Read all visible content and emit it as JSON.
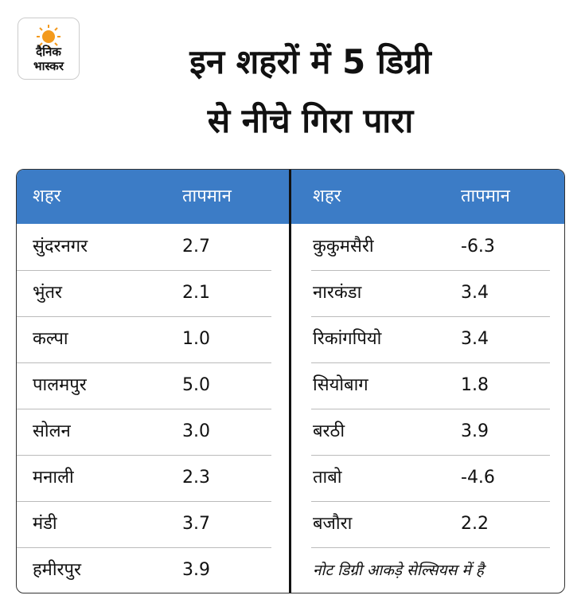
{
  "logo": {
    "line1": "दैनिक",
    "line2": "भास्कर"
  },
  "title": {
    "lines": [
      "इन शहरों में 5 डिग्री",
      "से नीचे गिरा पारा"
    ]
  },
  "tables": [
    {
      "header": [
        "शहर",
        "तापमान"
      ],
      "rows": [
        [
          "सुंदरनगर",
          "2.7"
        ],
        [
          "भुंतर",
          "2.1"
        ],
        [
          "कल्पा",
          "1.0"
        ],
        [
          "पालमपुर",
          "5.0"
        ],
        [
          "सोलन",
          "3.0"
        ],
        [
          "मनाली",
          "2.3"
        ],
        [
          "मंडी",
          "3.7"
        ],
        [
          "हमीरपुर",
          "3.9"
        ]
      ]
    },
    {
      "header": [
        "शहर",
        "तापमान"
      ],
      "rows": [
        [
          "कुकुमसैरी",
          "-6.3"
        ],
        [
          "नारकंडा",
          "3.4"
        ],
        [
          "रिकांगपियो",
          "3.4"
        ],
        [
          "सियोबाग",
          "1.8"
        ],
        [
          "बरठी",
          "3.9"
        ],
        [
          "ताबो",
          "-4.6"
        ],
        [
          "बजौरा",
          "2.2"
        ]
      ]
    }
  ],
  "note": "नोट डिग्री आकड़े सेल्सियस में है"
}
